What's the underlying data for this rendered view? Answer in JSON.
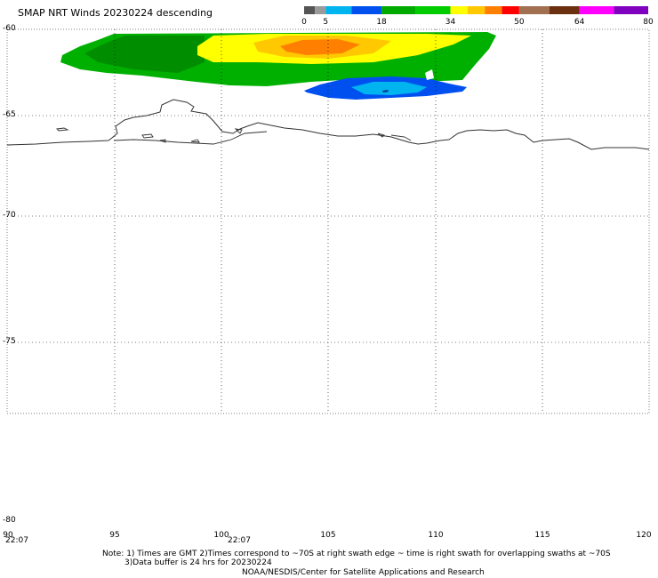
{
  "title": "SMAP NRT Winds  20230224 descending",
  "colorbar": {
    "labels": [
      "0",
      "5",
      "18",
      "34",
      "50",
      "64",
      "80"
    ],
    "segments": [
      {
        "value": 0,
        "color": "#555555"
      },
      {
        "value": 2.5,
        "color": "#9a9a9a"
      },
      {
        "value": 5,
        "color": "#00b4f0"
      },
      {
        "value": 11,
        "color": "#0050f0"
      },
      {
        "value": 18,
        "color": "#00aa00"
      },
      {
        "value": 26,
        "color": "#00cc00"
      },
      {
        "value": 34,
        "color": "#ffff00"
      },
      {
        "value": 38,
        "color": "#ffc800"
      },
      {
        "value": 42,
        "color": "#ff8000"
      },
      {
        "value": 46,
        "color": "#ff0000"
      },
      {
        "value": 50,
        "color": "#a07050"
      },
      {
        "value": 57,
        "color": "#6a3010"
      },
      {
        "value": 64,
        "color": "#ff00ff"
      },
      {
        "value": 72,
        "color": "#8000c0"
      },
      {
        "value": 80,
        "color": "#8000c0"
      }
    ]
  },
  "map": {
    "lat_labels": [
      "-60",
      "-65",
      "-70",
      "-75",
      "-80"
    ],
    "lon_labels": [
      "90",
      "95",
      "100",
      "105",
      "110",
      "115",
      "120"
    ],
    "time_labels": [
      "22:07",
      "22:07"
    ]
  },
  "notes": {
    "line1": "Note: 1) Times are GMT 2)Times correspond to ~70S at right swath edge ~ time is right swath for overlapping swaths at ~70S",
    "line2": "3)Data buffer is 24 hrs for 20230224",
    "line3": "NOAA/NESDIS/Center for Satellite Applications and Research"
  }
}
